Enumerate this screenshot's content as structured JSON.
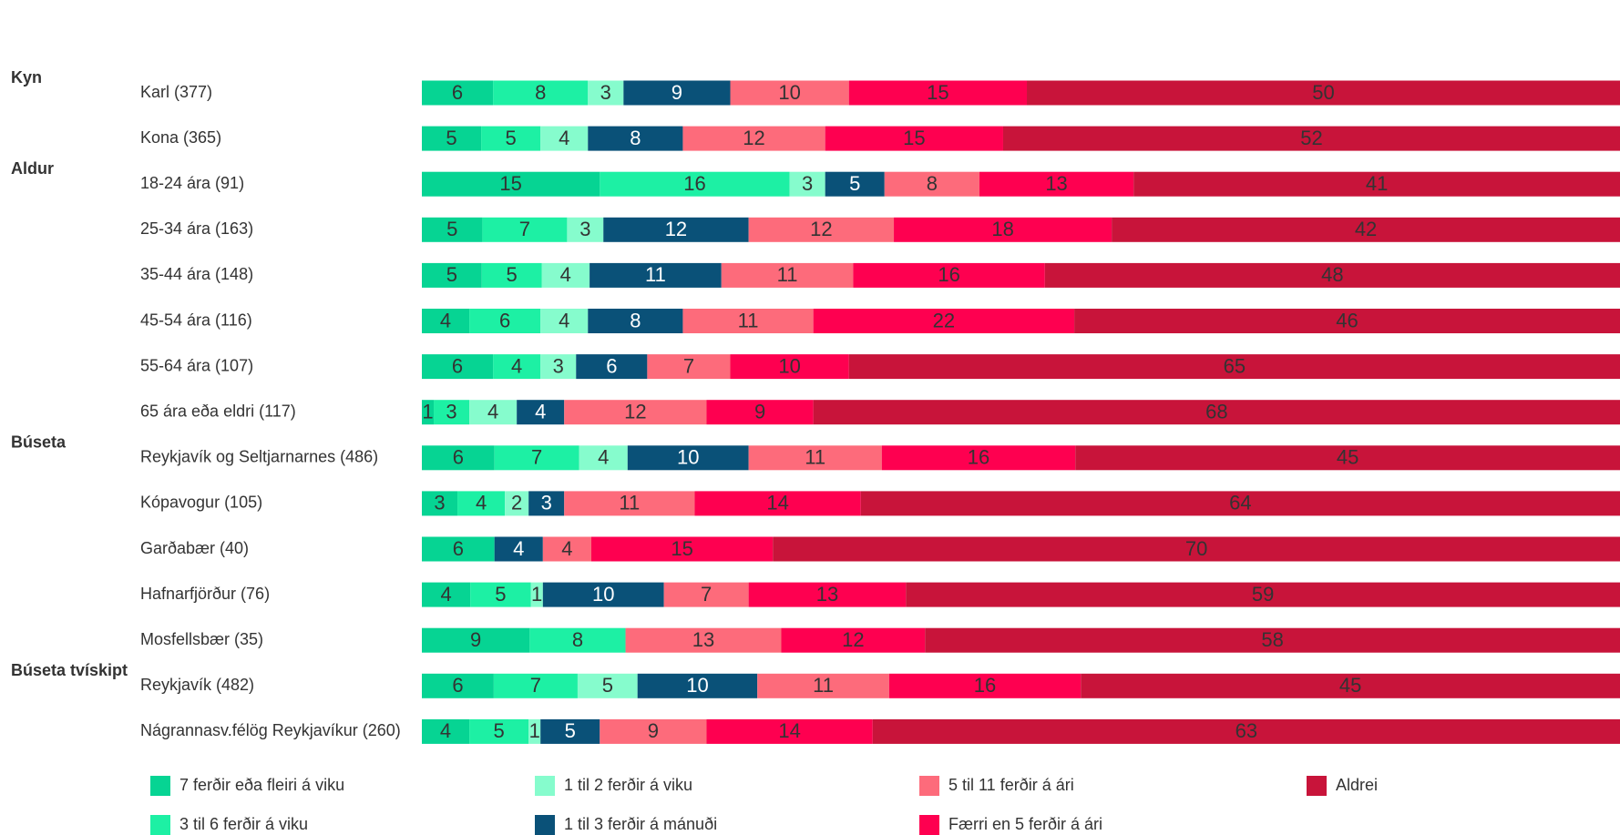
{
  "chart_data": {
    "type": "stacked-bar-horizontal",
    "groups": [
      "Kyn",
      "Aldur",
      "Búseta",
      "Búseta tvískipt"
    ],
    "categories": [
      "Karl (377)",
      "Kona (365)",
      "18-24 ára (91)",
      "25-34 ára (163)",
      "35-44 ára (148)",
      "45-54 ára (116)",
      "55-64 ára (107)",
      "65 ára eða eldri (117)",
      "Reykjavík og Seltjarnarnes (486)",
      "Kópavogur (105)",
      "Garðabær (40)",
      "Hafnarfjörður (76)",
      "Mosfellsbær (35)",
      "Reykjavík (482)",
      "Nágrannasv.félög Reykjavíkur (260)"
    ],
    "series": [
      {
        "name": "7 ferðir eða fleiri á viku",
        "color": "#06d493",
        "values": [
          6,
          5,
          15,
          5,
          5,
          4,
          6,
          1,
          6,
          3,
          6,
          4,
          9,
          6,
          4
        ]
      },
      {
        "name": "3 til 6 ferðir á viku",
        "color": "#1df0a4",
        "values": [
          8,
          5,
          16,
          7,
          5,
          6,
          4,
          3,
          7,
          4,
          null,
          5,
          8,
          7,
          5
        ]
      },
      {
        "name": "1 til 2 ferðir á viku",
        "color": "#86fccd",
        "values": [
          3,
          4,
          3,
          3,
          4,
          4,
          3,
          4,
          4,
          2,
          null,
          1,
          null,
          5,
          1
        ]
      },
      {
        "name": "1 til 3 ferðir á mánuði",
        "color": "#0a5178",
        "values": [
          9,
          8,
          5,
          12,
          11,
          8,
          6,
          4,
          10,
          3,
          4,
          10,
          null,
          10,
          5
        ]
      },
      {
        "name": "5 til 11 ferðir á ári",
        "color": "#fd6b7b",
        "values": [
          10,
          12,
          8,
          12,
          11,
          11,
          7,
          12,
          11,
          11,
          4,
          7,
          13,
          11,
          9
        ]
      },
      {
        "name": "Færri en 5 ferðir á ári",
        "color": "#fe0050",
        "values": [
          15,
          15,
          13,
          18,
          16,
          22,
          10,
          9,
          16,
          14,
          15,
          13,
          12,
          16,
          14
        ]
      },
      {
        "name": "Aldrei",
        "color": "#c8143a",
        "values": [
          50,
          52,
          41,
          42,
          48,
          46,
          65,
          68,
          45,
          64,
          70,
          59,
          58,
          45,
          63
        ]
      }
    ]
  }
}
